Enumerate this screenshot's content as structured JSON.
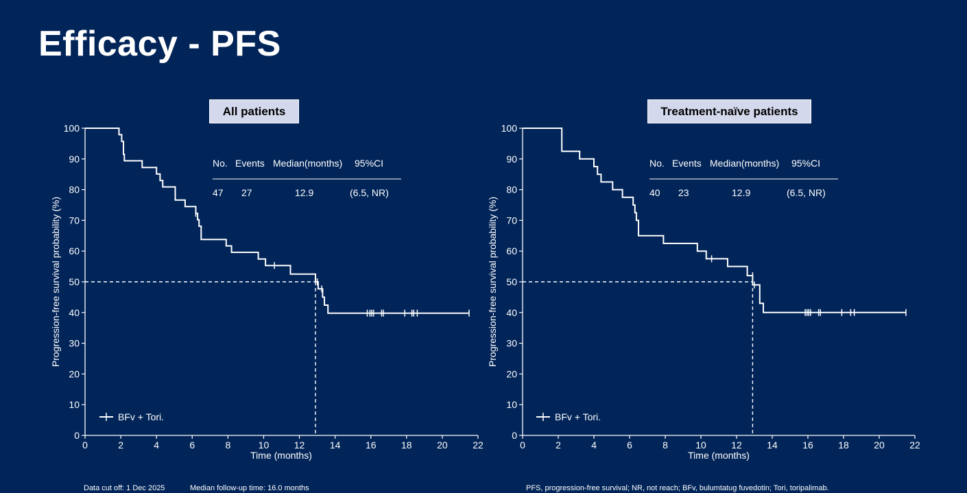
{
  "slide": {
    "title": "Efficacy - PFS",
    "footnote_left_1": "Data cut off: 1 Dec 2025",
    "footnote_left_2": "Median follow-up time: 16.0 months",
    "footnote_right": "PFS, progression-free survival; NR, not reach; BFv, bulumtatug fuvedotin; Tori, toripalimab."
  },
  "colors": {
    "background": "#022559",
    "line": "#ffffff",
    "label_box": "#d3d8ec"
  },
  "chart_data": [
    {
      "type": "line",
      "subtype": "kaplan-meier step",
      "panel_label": "All patients",
      "xlabel": "Time (months)",
      "ylabel": "Progression-free survival probability (%)",
      "xlim": [
        0,
        22
      ],
      "ylim": [
        0,
        100
      ],
      "x_ticks": [
        "0",
        "2",
        "4",
        "6",
        "8",
        "10",
        "12",
        "14",
        "16",
        "18",
        "20",
        "22"
      ],
      "y_ticks": [
        "0",
        "10",
        "20",
        "30",
        "40",
        "50",
        "60",
        "70",
        "80",
        "90",
        "100"
      ],
      "legend": "BFv + Tori.",
      "legend_position": "bottom-left",
      "table": {
        "headers": [
          "No.",
          "Events",
          "Median(months)",
          "95%CI"
        ],
        "row": [
          "47",
          "27",
          "12.9",
          "(6.5, NR)"
        ]
      },
      "median_line": {
        "x": 12.9,
        "y": 50
      },
      "steps": [
        [
          0,
          100
        ],
        [
          1.9,
          100
        ],
        [
          1.9,
          97.9
        ],
        [
          2.05,
          97.9
        ],
        [
          2.05,
          95.7
        ],
        [
          2.15,
          95.7
        ],
        [
          2.15,
          91.5
        ],
        [
          2.2,
          91.5
        ],
        [
          2.2,
          89.4
        ],
        [
          3.2,
          89.4
        ],
        [
          3.2,
          87.2
        ],
        [
          4.0,
          87.2
        ],
        [
          4.0,
          85.1
        ],
        [
          4.2,
          85.1
        ],
        [
          4.2,
          83.0
        ],
        [
          4.35,
          83.0
        ],
        [
          4.35,
          80.9
        ],
        [
          5.05,
          80.9
        ],
        [
          5.05,
          76.6
        ],
        [
          5.6,
          76.6
        ],
        [
          5.6,
          74.5
        ],
        [
          6.2,
          74.5
        ],
        [
          6.2,
          72.3
        ],
        [
          6.3,
          72.3
        ],
        [
          6.3,
          70.2
        ],
        [
          6.38,
          70.2
        ],
        [
          6.38,
          68.1
        ],
        [
          6.5,
          68.1
        ],
        [
          6.5,
          63.8
        ],
        [
          7.9,
          63.8
        ],
        [
          7.9,
          61.7
        ],
        [
          8.2,
          61.7
        ],
        [
          8.2,
          59.6
        ],
        [
          9.7,
          59.6
        ],
        [
          9.7,
          57.4
        ],
        [
          10.1,
          57.4
        ],
        [
          10.1,
          55.3
        ],
        [
          11.5,
          55.3
        ],
        [
          11.5,
          52.5
        ],
        [
          12.9,
          52.5
        ],
        [
          12.9,
          50.0
        ],
        [
          13.05,
          50.0
        ],
        [
          13.05,
          47.7
        ],
        [
          13.3,
          47.7
        ],
        [
          13.3,
          45.0
        ],
        [
          13.4,
          45.0
        ],
        [
          13.4,
          42.4
        ],
        [
          13.6,
          42.4
        ],
        [
          13.6,
          39.8
        ],
        [
          21.5,
          39.8
        ]
      ],
      "censors": [
        [
          6.2,
          72.3
        ],
        [
          10.6,
          55.3
        ],
        [
          13.0,
          50.0
        ],
        [
          13.25,
          47.7
        ],
        [
          15.8,
          39.8
        ],
        [
          15.95,
          39.8
        ],
        [
          16.05,
          39.8
        ],
        [
          16.15,
          39.8
        ],
        [
          16.6,
          39.8
        ],
        [
          16.7,
          39.8
        ],
        [
          17.9,
          39.8
        ],
        [
          18.3,
          39.8
        ],
        [
          18.4,
          39.8
        ],
        [
          18.6,
          39.8
        ],
        [
          21.5,
          39.8
        ]
      ]
    },
    {
      "type": "line",
      "subtype": "kaplan-meier step",
      "panel_label": "Treatment-naïve patients",
      "xlabel": "Time (months)",
      "ylabel": "Progression-free survival probability (%)",
      "xlim": [
        0,
        22
      ],
      "ylim": [
        0,
        100
      ],
      "x_ticks": [
        "0",
        "2",
        "4",
        "6",
        "8",
        "10",
        "12",
        "14",
        "16",
        "18",
        "20",
        "22"
      ],
      "y_ticks": [
        "0",
        "10",
        "20",
        "30",
        "40",
        "50",
        "60",
        "70",
        "80",
        "90",
        "100"
      ],
      "legend": "BFv + Tori.",
      "legend_position": "bottom-left",
      "table": {
        "headers": [
          "No.",
          "Events",
          "Median(months)",
          "95%CI"
        ],
        "row": [
          "40",
          "23",
          "12.9",
          "(6.5, NR)"
        ]
      },
      "median_line": {
        "x": 12.9,
        "y": 50
      },
      "steps": [
        [
          0,
          100
        ],
        [
          2.2,
          100
        ],
        [
          2.2,
          92.5
        ],
        [
          3.2,
          92.5
        ],
        [
          3.2,
          90.0
        ],
        [
          4.0,
          90.0
        ],
        [
          4.0,
          87.5
        ],
        [
          4.2,
          87.5
        ],
        [
          4.2,
          85.0
        ],
        [
          4.4,
          85.0
        ],
        [
          4.4,
          82.5
        ],
        [
          5.05,
          82.5
        ],
        [
          5.05,
          80.0
        ],
        [
          5.6,
          80.0
        ],
        [
          5.6,
          77.5
        ],
        [
          6.2,
          77.5
        ],
        [
          6.2,
          75.0
        ],
        [
          6.3,
          75.0
        ],
        [
          6.3,
          72.5
        ],
        [
          6.38,
          72.5
        ],
        [
          6.38,
          70.0
        ],
        [
          6.5,
          70.0
        ],
        [
          6.5,
          65.0
        ],
        [
          7.9,
          65.0
        ],
        [
          7.9,
          62.5
        ],
        [
          9.8,
          62.5
        ],
        [
          9.8,
          60.0
        ],
        [
          10.3,
          60.0
        ],
        [
          10.3,
          57.5
        ],
        [
          11.5,
          57.5
        ],
        [
          11.5,
          55.0
        ],
        [
          12.6,
          55.0
        ],
        [
          12.6,
          52.0
        ],
        [
          12.9,
          52.0
        ],
        [
          12.9,
          49.0
        ],
        [
          13.3,
          49.0
        ],
        [
          13.3,
          43.0
        ],
        [
          13.5,
          43.0
        ],
        [
          13.5,
          40.0
        ],
        [
          21.5,
          40.0
        ]
      ],
      "censors": [
        [
          10.6,
          57.5
        ],
        [
          12.9,
          52.0
        ],
        [
          13.0,
          49.0
        ],
        [
          15.85,
          40.0
        ],
        [
          15.95,
          40.0
        ],
        [
          16.05,
          40.0
        ],
        [
          16.15,
          40.0
        ],
        [
          16.6,
          40.0
        ],
        [
          16.7,
          40.0
        ],
        [
          17.9,
          40.0
        ],
        [
          18.4,
          40.0
        ],
        [
          18.6,
          40.0
        ],
        [
          21.5,
          40.0
        ]
      ]
    }
  ]
}
